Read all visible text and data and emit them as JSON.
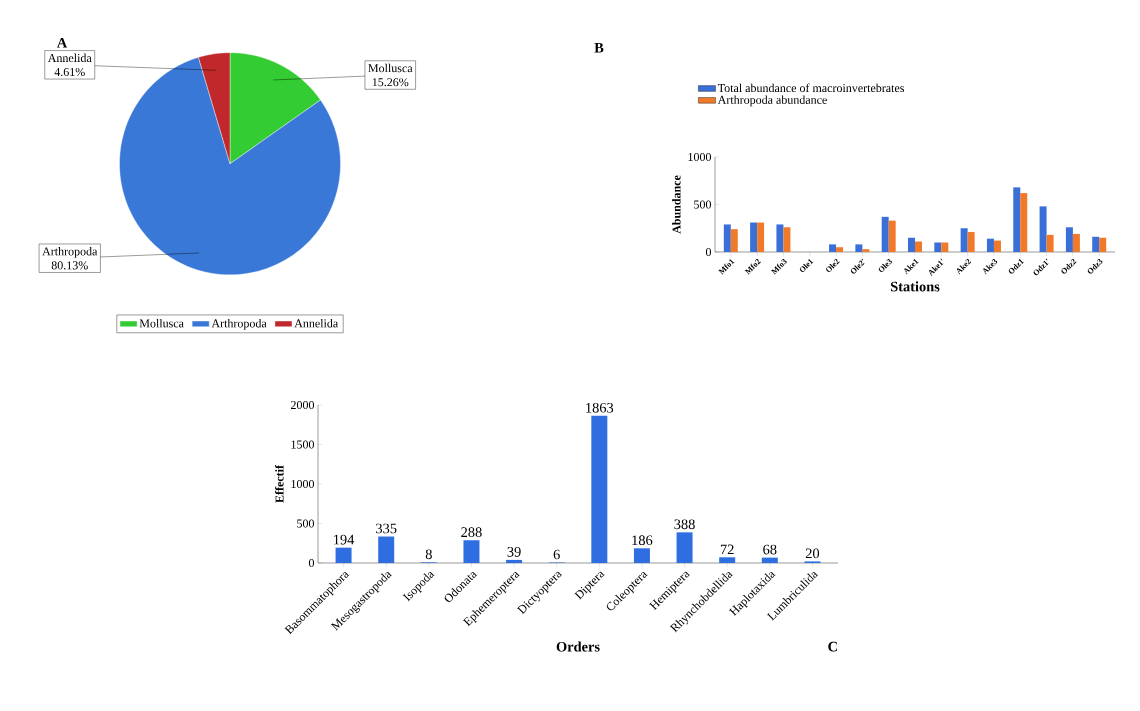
{
  "chart_data": [
    {
      "type": "pie",
      "title": "A",
      "categories": [
        "Mollusca",
        "Arthropoda",
        "Annelida"
      ],
      "values": [
        15.26,
        80.13,
        4.61
      ],
      "value_labels": [
        "15.26%",
        "80.13%",
        "4.61%"
      ],
      "colors": [
        "#33cc33",
        "#3a78d8",
        "#c0282c"
      ],
      "legend": "bottom"
    },
    {
      "type": "bar",
      "title": "B",
      "xlabel": "Stations",
      "ylabel": "Abundance",
      "categories": [
        "Mfo1",
        "Mfo2",
        "Mfo3",
        "Ole1",
        "Ole2",
        "Ole2'",
        "Ole3",
        "Ake1",
        "Ake1'",
        "Ake2",
        "Ake3",
        "Odz1",
        "Odz1'",
        "Odz2",
        "Odz3"
      ],
      "series": [
        {
          "name": "Total abundance of macroinvertebrates",
          "color": "#3a6fd8",
          "values": [
            290,
            310,
            290,
            0,
            80,
            80,
            370,
            150,
            100,
            250,
            140,
            680,
            480,
            260,
            160
          ]
        },
        {
          "name": "Arthropoda abundance",
          "color": "#f07a2a",
          "values": [
            240,
            310,
            260,
            0,
            50,
            30,
            330,
            110,
            100,
            210,
            120,
            620,
            180,
            190,
            150
          ]
        }
      ],
      "ylim": [
        0,
        1000
      ],
      "yticks": [
        0,
        500,
        1000
      ],
      "legend": "top",
      "grid": false
    },
    {
      "type": "bar",
      "title": "C",
      "xlabel": "Orders",
      "ylabel": "Effectif",
      "categories": [
        "Basommatophora",
        "Mesogastropoda",
        "Isopoda",
        "Odonata",
        "Ephemeroptera",
        "Dictyoptera",
        "Diptera",
        "Coleoptera",
        "Hemiptera",
        "Rhynchobdellida",
        "Haplotaxida",
        "Lumbriculida"
      ],
      "values": [
        194,
        335,
        8,
        288,
        39,
        6,
        1863,
        186,
        388,
        72,
        68,
        20
      ],
      "color": "#2f6ee0",
      "ylim": [
        0,
        2000
      ],
      "yticks": [
        0,
        500,
        1000,
        1500,
        2000
      ],
      "data_labels": true,
      "grid": false
    }
  ]
}
